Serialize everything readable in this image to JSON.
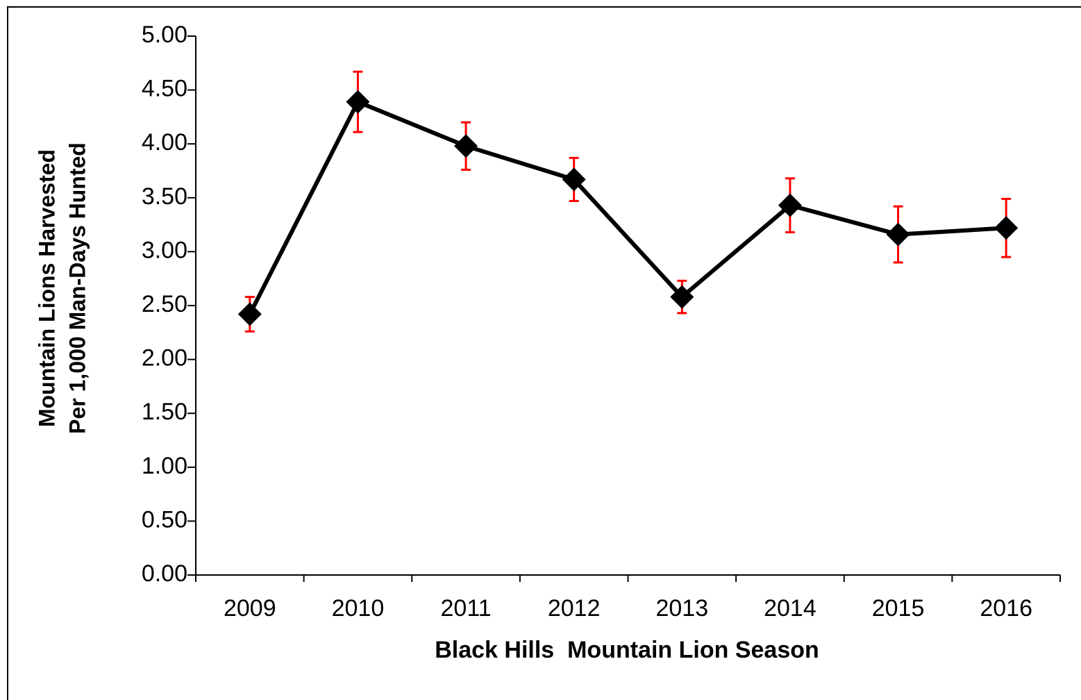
{
  "chart_data": {
    "type": "line",
    "y_label_lines": [
      "Mountain Lions Harvested",
      "Per 1,000 Man-Days Hunted"
    ],
    "x_label": "Black Hills  Mountain Lion Season",
    "categories": [
      "2009",
      "2010",
      "2011",
      "2012",
      "2013",
      "2014",
      "2015",
      "2016"
    ],
    "values": [
      2.42,
      4.39,
      3.98,
      3.67,
      2.58,
      3.43,
      3.16,
      3.22
    ],
    "errors": [
      0.16,
      0.28,
      0.22,
      0.2,
      0.15,
      0.25,
      0.26,
      0.27
    ],
    "color": "#000000",
    "error_color": "#ff0000",
    "marker": "diamond",
    "ylim": [
      0,
      5
    ],
    "yticks": [
      {
        "value": 0,
        "label": "0.00"
      },
      {
        "value": 0.5,
        "label": "0.50"
      },
      {
        "value": 1,
        "label": "1.00"
      },
      {
        "value": 1.5,
        "label": "1.50"
      },
      {
        "value": 2,
        "label": "2.00"
      },
      {
        "value": 2.5,
        "label": "2.50"
      },
      {
        "value": 3,
        "label": "3.00"
      },
      {
        "value": 3.5,
        "label": "3.50"
      },
      {
        "value": 4,
        "label": "4.00"
      },
      {
        "value": 4.5,
        "label": "4.50"
      },
      {
        "value": 5,
        "label": "5.00"
      }
    ],
    "grid": false
  }
}
